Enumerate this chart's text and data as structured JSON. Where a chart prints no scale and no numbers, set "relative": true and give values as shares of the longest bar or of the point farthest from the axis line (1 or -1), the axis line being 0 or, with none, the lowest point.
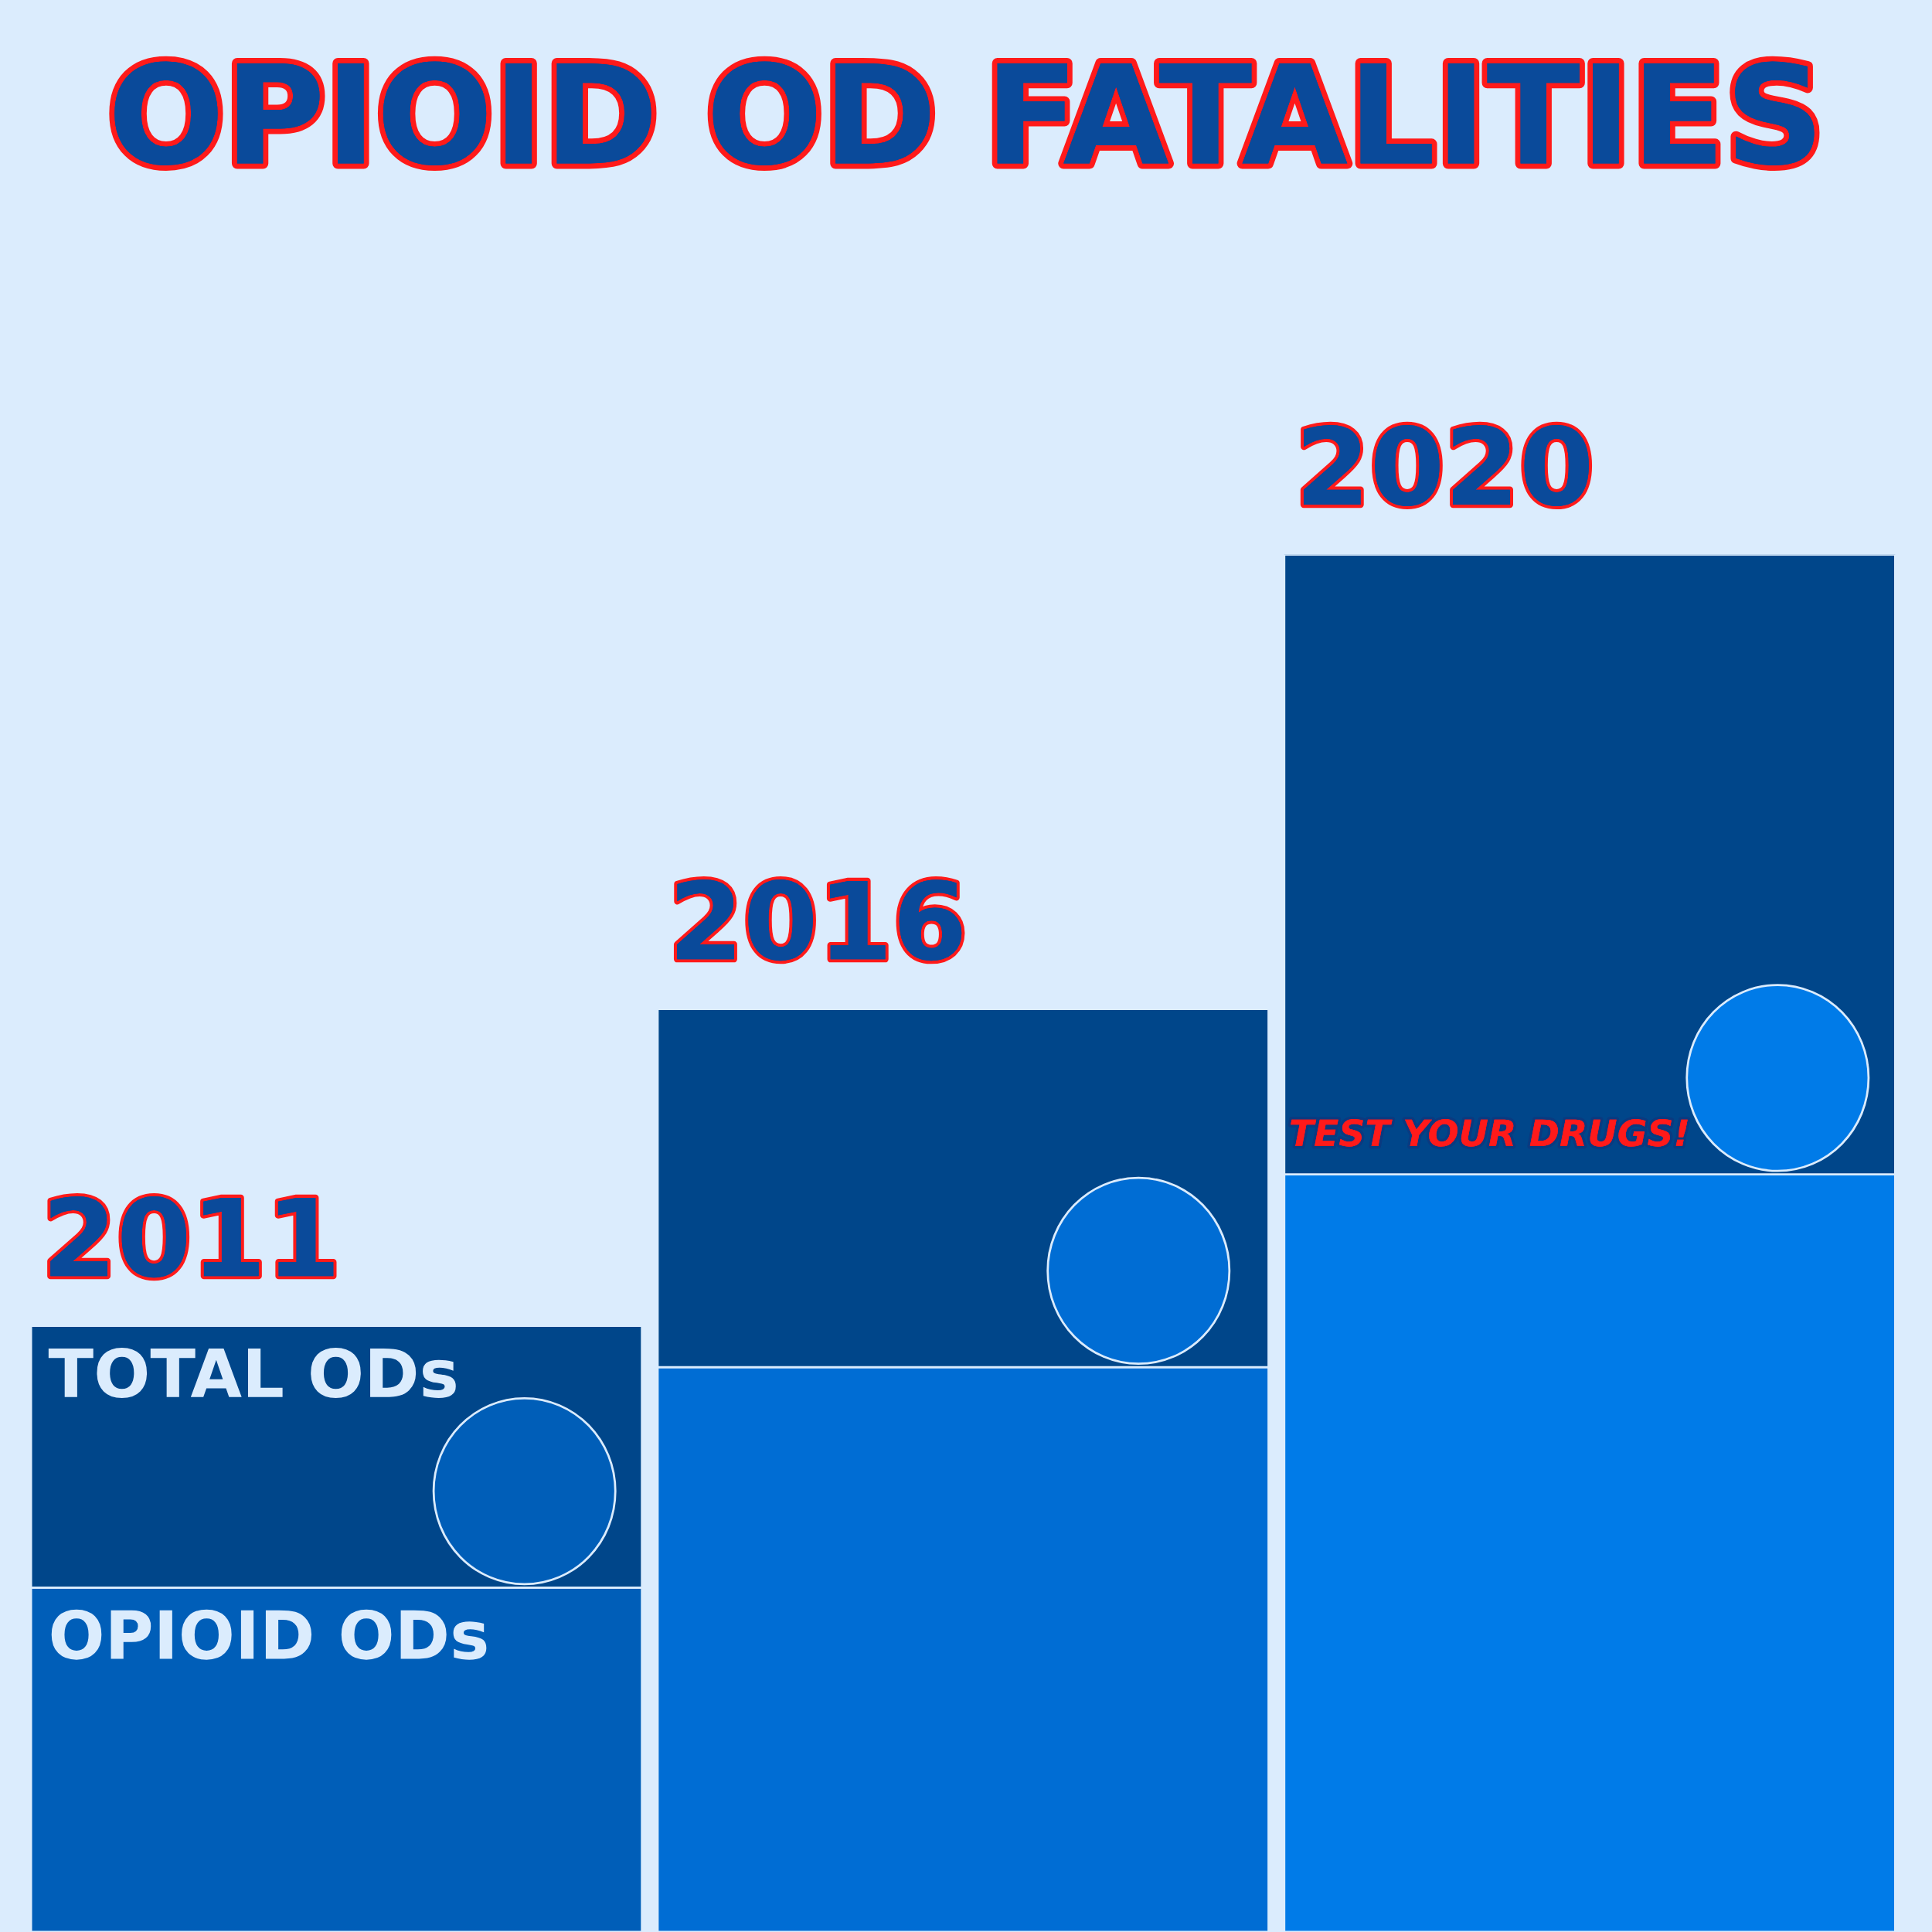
{
  "chart_data": {
    "type": "bar",
    "title": "OPIOID OD FATALITIES",
    "categories": [
      "2011",
      "2016",
      "2020"
    ],
    "stacked": true,
    "relative": true,
    "legend": false,
    "series": [
      {
        "name": "OPIOID ODs",
        "colors": [
          "#005eb8",
          "#006dd4",
          "#007be8"
        ],
        "values": [
          0.25,
          0.41,
          0.55
        ]
      },
      {
        "name": "TOTAL ODs",
        "color": "#00468a",
        "values": [
          0.19,
          0.26,
          0.45
        ]
      }
    ],
    "annotations": [
      "TEST YOUR DRUGS!"
    ]
  }
}
